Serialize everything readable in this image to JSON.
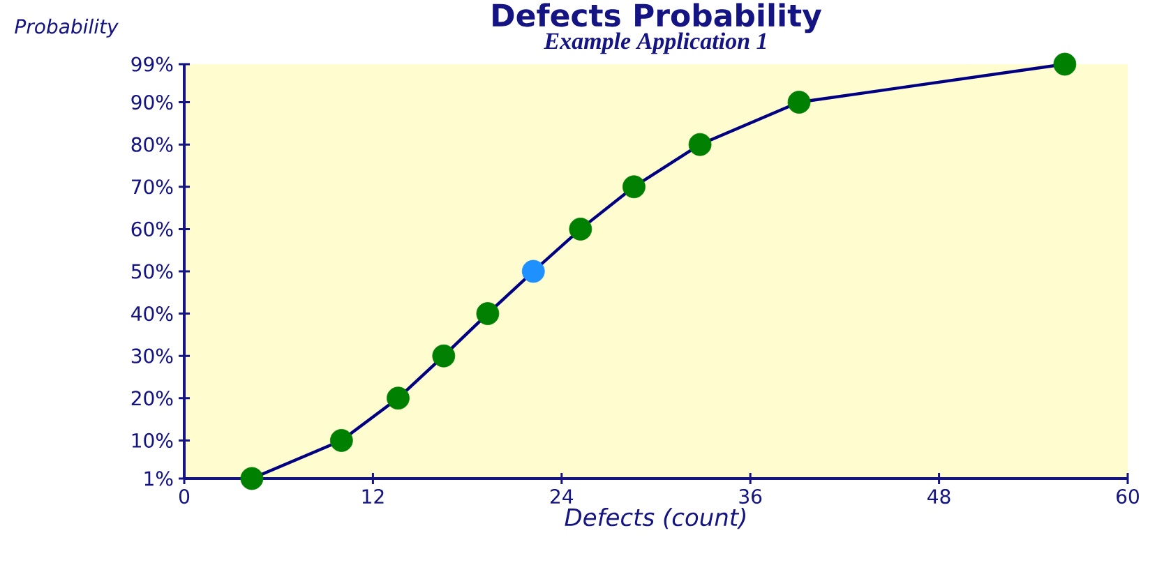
{
  "chart_data": {
    "type": "line",
    "title": "Defects Probability",
    "subtitle": "Example Application 1",
    "xlabel": "Defects (count)",
    "ylabel": "Probability",
    "x": [
      4.3,
      10,
      13.6,
      16.5,
      19.3,
      22.2,
      25.2,
      28.6,
      32.8,
      39.1,
      56
    ],
    "values": [
      1,
      10,
      20,
      30,
      40,
      50,
      60,
      70,
      80,
      90,
      99
    ],
    "color": "#000080",
    "colors": [
      "#008000",
      "#008000",
      "#008000",
      "#008000",
      "#008000",
      "#1e90ff",
      "#008000",
      "#008000",
      "#008000",
      "#008000",
      "#008000"
    ],
    "marker": "circle",
    "line_style": "solid",
    "grid": false,
    "xlim": [
      0,
      60
    ],
    "xticks": [
      0,
      12,
      24,
      36,
      48,
      60
    ],
    "ylim": [
      1,
      99
    ],
    "yticks": [
      {
        "value": 1,
        "label": "1%"
      },
      {
        "value": 10,
        "label": "10%"
      },
      {
        "value": 20,
        "label": "20%"
      },
      {
        "value": 30,
        "label": "30%"
      },
      {
        "value": 40,
        "label": "40%"
      },
      {
        "value": 50,
        "label": "50%"
      },
      {
        "value": 60,
        "label": "60%"
      },
      {
        "value": 70,
        "label": "70%"
      },
      {
        "value": 80,
        "label": "80%"
      },
      {
        "value": 90,
        "label": "90%"
      },
      {
        "value": 99,
        "label": "99%"
      }
    ]
  }
}
